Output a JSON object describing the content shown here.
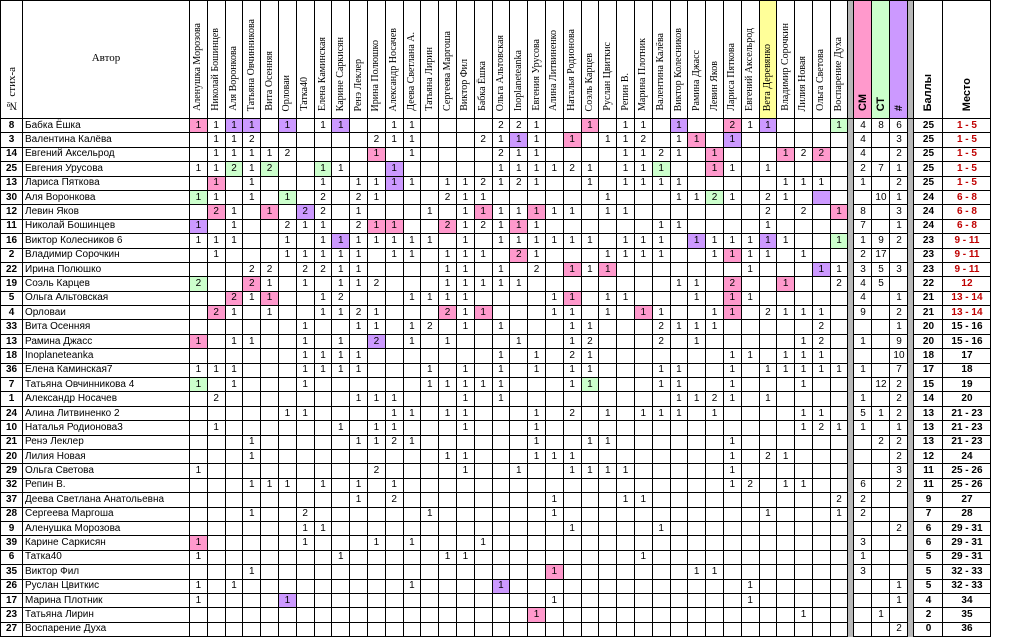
{
  "header": {
    "num": "№ стих-а",
    "author": "Автор",
    "judges": [
      "Аленушка Морозова",
      "Николай Бошинцев",
      "Аля Воронкова",
      "Татьяна Овчинникова",
      "Вита Осенняя",
      "Орловаи",
      "Татка40",
      "Елена Каминская",
      "Карине Саркисян",
      "Ренэ Леклер",
      "Ирина Полюшко",
      "Александр Носачев",
      "Деева Светлана А.",
      "Татьяна Лирин",
      "Сергеева Маргоша",
      "Виктор Фил",
      "Бабка Ёшка",
      "Ольга Альтовская",
      "Inoplaneteanka",
      "Евгения Урусова",
      "Алина Литвиненко",
      "Наталья Родионова",
      "Соэль Карцев",
      "Руслан Цвиткис",
      "Репин В.",
      "Марина Плотник",
      "Валентина Калёва",
      "Виктор Колесников",
      "Рамина Джасс",
      "Левин Яков",
      "Лариса Пятковa",
      "Евгений Аксельрод",
      "Вета Деревянко",
      "Владимир Сорочкин",
      "Лилия Новая",
      "Ольга Светова",
      "Воспарение Духа"
    ],
    "cm": "СМ",
    "ct": "СТ",
    "hash": "#",
    "score": "Баллы",
    "place": "Место"
  },
  "colors": {
    "pink": "#ff99cc",
    "green": "#ccffcc",
    "purple": "#cc99ff",
    "yellow": "#ffff99",
    "place_red": "#c00000"
  },
  "rows": [
    {
      "num": "8",
      "name": "Бабка Ёшка",
      "cells": "1p 1 1u 1u 0 1u 0 1 1u 0 0 1 1 0 0 0 0 2 2 1 0 0 1p 0 1 1 0 1u 0 0 2p 1 1u 0 0 0 1g",
      "cm": "4",
      "ct": "8",
      "h": "6",
      "score": "25",
      "place": "1 - 5"
    },
    {
      "num": "3",
      "name": "Валентина Калёва",
      "cells": "0 1 1 2 0 0 0 0 0 0 2 1 1 0 0 0 2 1 1u 1 0 1p 0 1 1 2 0 1 1p 0 1u 0 0 0 0 0 0",
      "cm": "4",
      "ct": "",
      "h": "3",
      "score": "25",
      "place": "1 - 5"
    },
    {
      "num": "14",
      "name": "Евгений Аксельрод",
      "cells": "0 1 1 1 1 2 0 0 0 0 1p 0 1 0 0 0 0 2 1 1 0 0 0 0 1 1 2 1 0 1p 0 0 0 1p 2 2p 0",
      "cm": "4",
      "ct": "",
      "h": "2",
      "score": "25",
      "place": "1 - 5"
    },
    {
      "num": "25",
      "name": "Евгения Урусова",
      "cells": "1 1 2g 1 2g 0 0 1g 1 0 0 1u 0 0 0 0 0 1 1 1 1 2 1 0 1 1 1g 0 0 1p 1 0 1 0 0 0 0",
      "cm": "2",
      "ct": "7",
      "h": "1",
      "score": "25",
      "place": "1 - 5"
    },
    {
      "num": "13",
      "name": "Лариса Пятковa",
      "cells": "0 1p 0 1 0 0 0 1 0 1 1 1u 1 0 1 1 2 1 2 1 0 0 1 0 1 1 1 1 0 0 0 0 0 1 1 1 0",
      "cm": "1",
      "ct": "",
      "h": "2",
      "score": "25",
      "place": "1 - 5"
    },
    {
      "num": "30",
      "name": "Аля Воронкова",
      "cells": "1g 1 0 1 0 1g 0 2 0 2 1 0 0 0 2 1 1 0 0 0 0 0 0 1 0 0 0 1 1 2g 1 0 2 1 0 0u 0",
      "cm": "",
      "ct": "10",
      "h": "1",
      "score": "24",
      "place": "6 - 8"
    },
    {
      "num": "12",
      "name": "Левин Яков",
      "cells": "0 2p 1 0 1p 0 2u 2 0 1 0 0 0 1 0 1 1p 1 1 1p 1 1 0 1 1 0 0 0 0 0 0 0 2 0 2 0 1p",
      "cm": "8",
      "ct": "",
      "h": "3",
      "score": "24",
      "place": "6 - 8"
    },
    {
      "num": "11",
      "name": "Николай Бошинцев",
      "cells": "1u 0 1 0 0 2 1 1 0 2 1p 1p 0 0 2p 1 2 1 1p 1 0 0 0 0 0 0 1 1 0 0 0 0 1 0 0 0 0",
      "cm": "7",
      "ct": "",
      "h": "1",
      "score": "24",
      "place": "6 - 8"
    },
    {
      "num": "16",
      "name": "Виктор Колесников 6",
      "cells": "1 1 1 0 0 1 0 1 1u 1 1 1 1 1 0 1 0 1 1 1 1 1 1 0 1 1 1 0 1u 1 1 1 1u 1 0 0 1g",
      "cm": "1",
      "ct": "9",
      "h": "2",
      "score": "23",
      "place": "9 - 11"
    },
    {
      "num": "2",
      "name": "Владимир Сорочкин",
      "cells": "0 1 0 0 0 1 1 1 1 1 0 1 1 0 1 1 1 0 2p 1 0 0 0 1 1 1 1 0 0 1 1p 1 1 0 1 0 0",
      "cm": "2",
      "ct": "17",
      "h": "",
      "score": "23",
      "place": "9 - 11"
    },
    {
      "num": "22",
      "name": "Ирина Полюшко",
      "cells": "0 0 0 2 2 0 2 2 1 1 0 0 0 0 1 1 0 1 0 2 0 1p 1 1p 0 0 0 0 0 0 0 1 0 0 0 1u 1",
      "cm": "3",
      "ct": "5",
      "h": "3",
      "score": "23",
      "place": "9 - 11"
    },
    {
      "num": "19",
      "name": "Соэль Карцев",
      "cells": "2g 0 0 2p 1 0 1 0 1 1 2 0 0 0 1 1 1 1 1 0 0 0 0 0 0 0 0 1 1 0 2p 0 0 1p 0 0 2",
      "cm": "4",
      "ct": "5",
      "h": "",
      "score": "22",
      "place": "12"
    },
    {
      "num": "5",
      "name": "Ольга Альтовская",
      "cells": "0 0 2p 1 1p 0 0 1 2 0 0 0 1 1 1 1 0 0 0 0 1 1p 0 1 1 0 0 0 1 0 1p 1 0 0 0 0 0",
      "cm": "4",
      "ct": "",
      "h": "1",
      "score": "21",
      "place": "13 - 14"
    },
    {
      "num": "4",
      "name": "Орловаи",
      "cells": "0 2p 1 0 1 0 0 1 1 2 1 0 0 0 2p 1 1p 0 0 0 1 1 0 1 0 1p 1 0 0 1 1p 0 2 1 1 1 0",
      "cm": "9",
      "ct": "",
      "h": "2",
      "score": "21",
      "place": "13 - 14"
    },
    {
      "num": "33",
      "name": "Вита Осенняя",
      "cells": "0 0 0 0 0 0 1 0 0 1 1 0 1 2 0 1 0 1 0 0 0 1 1 0 0 0 2 1 1 1 0 0 0 0 0 2 0",
      "cm": "",
      "ct": "",
      "h": "1",
      "score": "20",
      "place": "15 - 16"
    },
    {
      "num": "13",
      "name": "Рамина Джасс",
      "cells": "1p 0 1 1 0 0 1 0 1 0 2u 0 1 0 1 0 0 0 1 0 0 1 2 0 0 0 2 0 1 0 0 0 0 0 1 2 0",
      "cm": "1",
      "ct": "",
      "h": "9",
      "score": "20",
      "place": "15 - 16"
    },
    {
      "num": "18",
      "name": "Inoplaneteanka",
      "cells": "0 0 0 0 0 0 1 1 1 1 0 0 0 0 0 0 0 1 0 1 0 2 1 0 0 0 0 0 0 0 1 1 0 1 1 1 0",
      "cm": "",
      "ct": "",
      "h": "10",
      "score": "18",
      "place": "17"
    },
    {
      "num": "36",
      "name": "Елена Каминская7",
      "cells": "1 1 1 0 0 0 1 1 1 1 0 0 0 1 0 1 0 1 0 1 0 1 1 0 0 0 1 1 0 0 1 0 1 1 1 1 1",
      "cm": "1",
      "ct": "",
      "h": "7",
      "score": "17",
      "place": "18"
    },
    {
      "num": "7",
      "name": "Татьяна Овчинникова 4",
      "cells": "1g 0 1 0 0 0 1 0 0 0 0 0 0 1 1 1 1 1 0 0 0 1 1g 0 0 0 1 1 0 0 1 0 0 0 1 0 0",
      "cm": "",
      "ct": "12",
      "h": "2",
      "score": "15",
      "place": "19"
    },
    {
      "num": "1",
      "name": "Александр Носачев",
      "cells": "0 2 0 0 0 0 0 0 0 1 1 1 0 0 0 1 0 1 0 0 0 0 0 0 0 0 0 1 1 2 1 0 1 0 0 0 0",
      "cm": "1",
      "ct": "",
      "h": "2",
      "score": "14",
      "place": "20"
    },
    {
      "num": "24",
      "name": "Алина Литвиненко 2",
      "cells": "0 0 0 0 0 1 1 0 0 0 0 1 1 0 1 1 0 0 0 1 0 2 0 1 0 1 1 1 0 1 0 0 0 0 1 1 0",
      "cm": "5",
      "ct": "1",
      "h": "2",
      "score": "13",
      "place": "21 - 23"
    },
    {
      "num": "10",
      "name": "Наталья Родионова3",
      "cells": "0 1 0 0 0 0 0 0 1 0 1 1 0 0 0 1 0 0 0 1 0 0 0 0 0 0 0 0 0 0 0 0 0 0 1 2 1",
      "cm": "1",
      "ct": "",
      "h": "1",
      "score": "13",
      "place": "21 - 23"
    },
    {
      "num": "21",
      "name": "Ренэ Леклер",
      "cells": "0 0 0 1 0 0 0 0 0 1 1 2 1 0 0 0 0 0 0 1 0 0 1 1 0 0 0 0 0 0 1 0 0 0 0 0 0",
      "cm": "",
      "ct": "2",
      "h": "2",
      "score": "13",
      "place": "21 - 23"
    },
    {
      "num": "20",
      "name": "Лилия Новая",
      "cells": "0 0 0 1 0 0 0 0 0 0 0 0 0 0 1 1 0 0 0 1 1 1 0 0 0 0 0 0 0 0 1 0 2 1 0 0 0",
      "cm": "",
      "ct": "",
      "h": "2",
      "score": "12",
      "place": "24"
    },
    {
      "num": "29",
      "name": "Ольга Светова",
      "cells": "1 0 0 0 0 0 0 0 0 0 2 0 0 0 0 1 0 0 1 0 0 1 1 1 1 0 0 0 0 0 1 0 0 0 0 0 0",
      "cm": "",
      "ct": "",
      "h": "3",
      "score": "11",
      "place": "25 - 26"
    },
    {
      "num": "32",
      "name": "Репин В.",
      "cells": "0 0 0 1 1 1 0 1 0 1 0 1 0 0 0 0 0 0 0 0 0 0 0 0 0 0 0 0 0 0 1 2 0 1 1 0 0",
      "cm": "6",
      "ct": "",
      "h": "2",
      "score": "11",
      "place": "25 - 26"
    },
    {
      "num": "37",
      "name": "Деева Светлана Анатольевна",
      "cells": "0 0 0 0 0 0 0 0 0 1 0 2 0 0 0 0 0 0 0 0 1 0 0 0 1 1 0 0 0 0 0 0 0 0 0 0 2",
      "cm": "2",
      "ct": "",
      "h": "",
      "score": "9",
      "place": "27"
    },
    {
      "num": "28",
      "name": "Сергеева Маргоша",
      "cells": "0 0 0 1 0 0 2 0 0 0 0 0 0 1 0 0 0 0 0 0 1 0 0 0 0 0 0 0 0 0 0 0 1 0 0 0 1",
      "cm": "2",
      "ct": "",
      "h": "",
      "score": "7",
      "place": "28"
    },
    {
      "num": "9",
      "name": "Аленушка Морозова",
      "cells": "0 0 0 0 0 0 1 1 0 0 0 0 0 0 0 0 0 0 0 0 0 1 0 0 0 0 1 0 0 0 0 0 0 0 0 0 0",
      "cm": "",
      "ct": "",
      "h": "2",
      "score": "6",
      "place": "29 - 31"
    },
    {
      "num": "39",
      "name": "Карине Саркисян",
      "cells": "1p 0 0 0 0 0 1 0 0 0 1 0 1 0 0 0 1 0 0 0 0 0 0 0 0 0 0 0 0 0 0 0 0 0 0 0 0",
      "cm": "3",
      "ct": "",
      "h": "",
      "score": "6",
      "place": "29 - 31"
    },
    {
      "num": "6",
      "name": "Татка40",
      "cells": "1 0 0 0 0 0 0 0 1 0 0 0 0 0 1 1 0 0 0 0 0 0 0 0 0 1 0 0 0 0 0 0 0 0 0 0 0",
      "cm": "1",
      "ct": "",
      "h": "",
      "score": "5",
      "place": "29 - 31"
    },
    {
      "num": "35",
      "name": "Виктор Фил",
      "cells": "0 0 0 1 0 0 0 0 0 0 0 0 0 0 0 0 0 0 0 0 1p 0 0 0 0 0 0 0 1 1 0 0 0 0 0 0 0",
      "cm": "3",
      "ct": "",
      "h": "",
      "score": "5",
      "place": "32 - 33"
    },
    {
      "num": "26",
      "name": "Руслан Цвиткис",
      "cells": "1 0 1 0 0 0 0 0 0 0 0 0 1 0 0 0 0 1u 0 0 0 0 0 0 0 0 0 0 0 0 0 1 0 0 0 0 0",
      "cm": "",
      "ct": "",
      "h": "1",
      "score": "5",
      "place": "32 - 33"
    },
    {
      "num": "17",
      "name": "Марина Плотник",
      "cells": "1 0 0 0 0 1u 0 0 0 0 0 0 0 0 0 0 0 0 0 0 1 0 0 0 0 0 0 0 0 0 0 1 0 0 0 0 0",
      "cm": "",
      "ct": "",
      "h": "1",
      "score": "4",
      "place": "34"
    },
    {
      "num": "23",
      "name": "Татьяна Лирин",
      "cells": "0 0 0 0 0 0 0 0 0 0 0 0 0 0 0 0 0 0 0 1p 0 0 0 0 0 0 0 0 0 0 0 0 0 0 1 0 0",
      "cm": "",
      "ct": "1",
      "h": "",
      "score": "2",
      "place": "35"
    },
    {
      "num": "27",
      "name": "Воспарение Духа",
      "cells": "0 0 0 0 0 0 0 0 0 0 0 0 0 0 0 0 0 0 0 0 0 0 0 0 0 0 0 0 0 0 0 0 0 0 0 0 0",
      "cm": "",
      "ct": "",
      "h": "2",
      "score": "0",
      "place": "36"
    }
  ]
}
